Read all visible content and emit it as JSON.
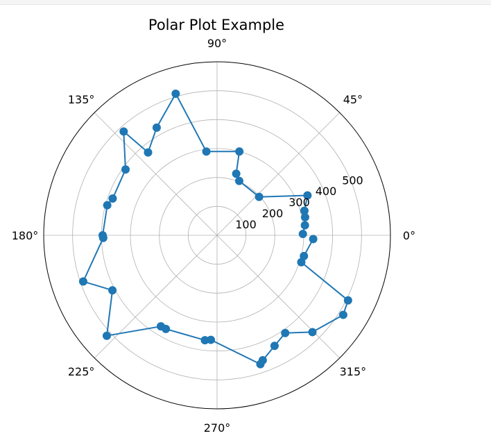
{
  "chart_data": {
    "type": "polar-line",
    "title": "Polar Plot Example",
    "angle_tick_labels": [
      "0°",
      "45°",
      "90°",
      "135°",
      "180°",
      "225°",
      "270°",
      "315°"
    ],
    "angle_ticks_deg": [
      0,
      45,
      90,
      135,
      180,
      225,
      270,
      315
    ],
    "radial_tick_labels": [
      "100",
      "200",
      "300",
      "400",
      "500"
    ],
    "radial_ticks": [
      100,
      200,
      300,
      400,
      500
    ],
    "rlim": [
      0,
      600
    ],
    "grid": true,
    "line_color": "#1f77b4",
    "marker": "circle",
    "series": [
      {
        "theta_deg": [
          0.9,
          6.5,
          11.6,
          15.7,
          23.8,
          42.4,
          67.8,
          72.7,
          75.1,
          97.3,
          106.3,
          119.3,
          129.8,
          132.0,
          144.3,
          160.6,
          164.7,
          180.0,
          181.3,
          199.0,
          207.7,
          222.3,
          238.3,
          241.3,
          263.4,
          266.6,
          288.6,
          290.1,
          297.5,
          304.9,
          314.6,
          327.8,
          333.6,
          342.3,
          346.6,
          357.8
        ],
        "r": [
          297,
          306,
          311,
          314,
          342,
          197,
          203,
          223,
          300,
          292,
          510,
          427,
          373,
          483,
          390,
          383,
          394,
          396,
          394,
          490,
          409,
          516,
          370,
          369,
          365,
          362,
          470,
          460,
          431,
          412,
          470,
          516,
          506,
          306,
          309,
          333
        ]
      }
    ]
  }
}
